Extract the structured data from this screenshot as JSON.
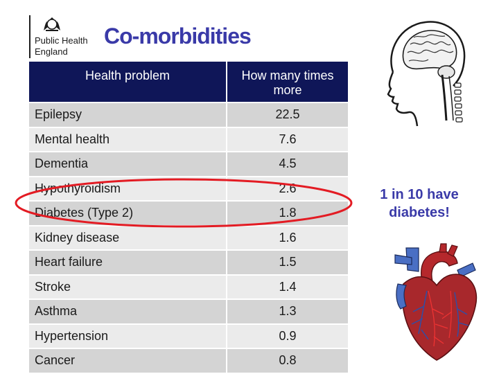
{
  "logo": {
    "org_name": "Public Health\nEngland"
  },
  "title": "Co-morbidities",
  "table": {
    "headers": [
      "Health problem",
      "How many times more"
    ],
    "rows": [
      {
        "problem": "Epilepsy",
        "value": "22.5"
      },
      {
        "problem": "Mental health",
        "value": "7.6"
      },
      {
        "problem": "Dementia",
        "value": "4.5"
      },
      {
        "problem": "Hypothyroidism",
        "value": "2.6"
      },
      {
        "problem": "Diabetes (Type 2)",
        "value": "1.8"
      },
      {
        "problem": "Kidney disease",
        "value": "1.6"
      },
      {
        "problem": "Heart failure",
        "value": "1.5"
      },
      {
        "problem": "Stroke",
        "value": "1.4"
      },
      {
        "problem": "Asthma",
        "value": "1.3"
      },
      {
        "problem": "Hypertension",
        "value": "0.9"
      },
      {
        "problem": "Cancer",
        "value": "0.8"
      }
    ]
  },
  "callout": {
    "line1": "1 in 10 have",
    "line2": "diabetes!"
  },
  "highlight": {
    "color": "#e31b23",
    "target_row": "Diabetes (Type 2)"
  },
  "images": {
    "head": "brain-head-illustration",
    "heart": "heart-illustration"
  },
  "colors": {
    "header_bg": "#0f1658",
    "title": "#3a3aa8"
  }
}
